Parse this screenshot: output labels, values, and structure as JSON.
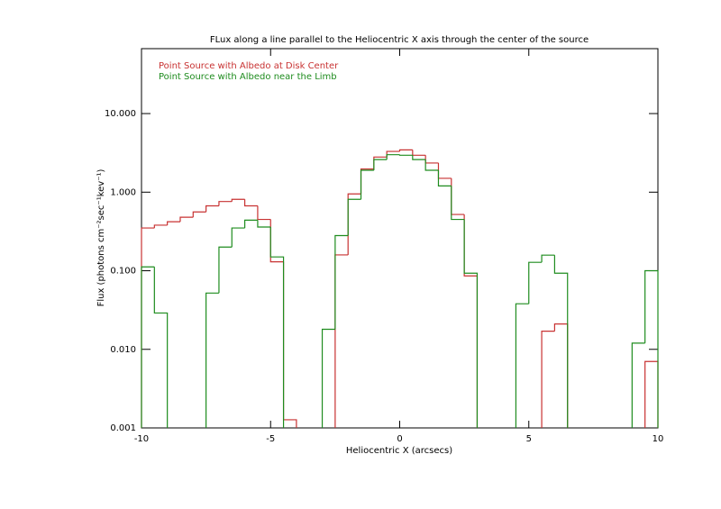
{
  "chart_data": {
    "type": "histogram",
    "title": "FLux along a line parallel to the Heliocentric X axis through the center of the source",
    "x_label": "Heliocentric X (arcsecs)",
    "y_label": "Flux (photons cm⁻²sec⁻¹kev⁻¹)",
    "bins": [
      -10,
      -9.5,
      -9,
      -8.5,
      -8,
      -7.5,
      -7,
      -6.5,
      -6,
      -5.5,
      -5,
      -4.5,
      -4,
      -3.5,
      -3,
      -2.5,
      -2,
      -1.5,
      -1,
      -0.5,
      0,
      0.5,
      1,
      1.5,
      2,
      2.5,
      3,
      3.5,
      4,
      4.5,
      5,
      5.5,
      6,
      6.5,
      7,
      7.5,
      8,
      8.5,
      9,
      9.5,
      10
    ],
    "series": [
      {
        "name": "Point Source with Albedo at Disk Center",
        "color": "#c83232",
        "values": [
          0.35,
          0.38,
          0.42,
          0.48,
          0.56,
          0.67,
          0.76,
          0.81,
          0.67,
          0.45,
          0.13,
          0.00127,
          null,
          null,
          null,
          0.159,
          0.95,
          1.97,
          2.8,
          3.3,
          3.45,
          2.95,
          2.35,
          1.5,
          0.52,
          0.086,
          null,
          null,
          null,
          null,
          null,
          0.017,
          0.021,
          null,
          null,
          null,
          null,
          null,
          null,
          0.007
        ]
      },
      {
        "name": "Point Source with Albedo near the Limb",
        "color": "#1e8c1e",
        "values": [
          0.112,
          0.029,
          null,
          null,
          null,
          0.052,
          0.2,
          0.35,
          0.44,
          0.36,
          0.15,
          null,
          null,
          null,
          0.018,
          0.28,
          0.81,
          1.9,
          2.6,
          3.0,
          2.95,
          2.6,
          1.9,
          1.2,
          0.45,
          0.093,
          null,
          null,
          null,
          0.038,
          0.128,
          0.158,
          0.093,
          null,
          null,
          null,
          null,
          null,
          0.012,
          0.1
        ]
      }
    ],
    "xlim": [
      -10,
      10
    ],
    "xticks": [
      -10,
      -5,
      0,
      5,
      10
    ],
    "ylim": [
      0.001,
      67
    ],
    "log_y": true,
    "yticks": [
      {
        "value": 0.001,
        "label": "0.001"
      },
      {
        "value": 0.01,
        "label": "0.010"
      },
      {
        "value": 0.1,
        "label": "0.100"
      },
      {
        "value": 1,
        "label": "1.000"
      },
      {
        "value": 10,
        "label": "10.000"
      }
    ]
  }
}
